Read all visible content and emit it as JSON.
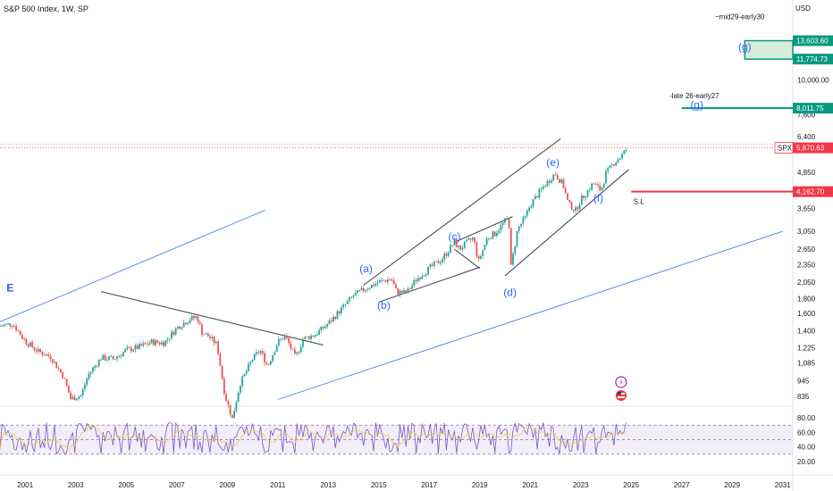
{
  "header": {
    "title": "S&P 500 Index, 1W, SP",
    "currency": "USD"
  },
  "colors": {
    "up": "#26a69a",
    "down": "#ef5350",
    "trend_blue": "#5b8def",
    "line_black": "#363a45",
    "target_teal": "#089981",
    "stop_red": "#f23645",
    "wave_label": "#2962ff",
    "rsi": "#7e57c2"
  },
  "chart_data": [
    {
      "type": "line",
      "title": "S&P 500 Index, 1W, SP",
      "scale": "log",
      "x_ticks": [
        "2001",
        "2003",
        "2005",
        "2007",
        "2009",
        "2011",
        "2013",
        "2015",
        "2017",
        "2019",
        "2021",
        "2023",
        "2025",
        "2027",
        "2029",
        "2031"
      ],
      "y_ticks": [
        835,
        945,
        1085,
        1225,
        1400,
        1600,
        1800,
        2050,
        2350,
        2650,
        3050,
        3650,
        4850,
        6400,
        7600,
        10000
      ],
      "series": [
        {
          "x": [
            2000.0,
            2000.5,
            2001.0,
            2001.5,
            2002.0,
            2002.5,
            2002.8,
            2003.2,
            2003.5,
            2004.0,
            2004.5,
            2005.0,
            2005.5,
            2006.0,
            2006.5,
            2007.0,
            2007.5,
            2007.8,
            2008.0,
            2008.3,
            2008.6,
            2008.9,
            2009.2,
            2009.5,
            2010.0,
            2010.3,
            2010.6,
            2011.0,
            2011.3,
            2011.7,
            2012.0,
            2012.5,
            2013.0,
            2013.5,
            2014.0,
            2014.5,
            2015.0,
            2015.5,
            2015.7,
            2016.1,
            2016.5,
            2017.0,
            2017.5,
            2018.0,
            2018.2,
            2018.5,
            2018.75,
            2018.95,
            2019.3,
            2019.6,
            2020.0,
            2020.15,
            2020.22,
            2020.5,
            2020.8,
            2021.0,
            2021.5,
            2021.98,
            2022.3,
            2022.5,
            2022.79,
            2023.0,
            2023.5,
            2023.8,
            2024.0,
            2024.3,
            2024.6,
            2024.85
          ],
          "y": [
            1450,
            1480,
            1290,
            1190,
            1140,
            980,
            820,
            840,
            990,
            1130,
            1120,
            1200,
            1230,
            1280,
            1270,
            1430,
            1530,
            1560,
            1380,
            1330,
            1250,
            850,
            700,
            920,
            1120,
            1200,
            1060,
            1280,
            1340,
            1130,
            1310,
            1360,
            1480,
            1650,
            1840,
            1950,
            2050,
            2100,
            1900,
            1880,
            2100,
            2280,
            2450,
            2800,
            2650,
            2800,
            2900,
            2400,
            2900,
            3000,
            3300,
            3386,
            2250,
            3100,
            3400,
            3750,
            4300,
            4800,
            4400,
            3800,
            3580,
            3900,
            4450,
            4200,
            4800,
            5200,
            5500,
            5870
          ],
          "labels": {
            "price": {
              "text": "SPX",
              "value": "5,870.63"
            }
          }
        }
      ],
      "rsi": {
        "y_ticks": [
          20,
          40,
          60,
          80
        ],
        "band": [
          30,
          70
        ]
      },
      "annotations": {
        "waves": [
          {
            "label": "(a)",
            "x": 2014.5,
            "y": 2210
          },
          {
            "label": "(b)",
            "x": 2015.2,
            "y": 1660
          },
          {
            "label": "(c)",
            "x": 2018.0,
            "y": 2850
          },
          {
            "label": "(d)",
            "x": 2020.2,
            "y": 1840
          },
          {
            "label": "(e)",
            "x": 2021.9,
            "y": 5080
          },
          {
            "label": "(f)",
            "x": 2023.7,
            "y": 3850
          },
          {
            "label": "(g)",
            "x": 2027.6,
            "y": 8000
          },
          {
            "label": "(g)",
            "x": 2029.5,
            "y": 12600
          },
          {
            "label": "E",
            "x": 2000.4,
            "y": 1900
          }
        ],
        "notes": [
          {
            "text": "-late 26-early27",
            "x": 2027.5,
            "y": 8650
          },
          {
            "text": "~mid29-early30",
            "x": 2029.3,
            "y": 16100
          },
          {
            "text": "S.L",
            "x": 2025.3,
            "y": 3780
          }
        ],
        "price_tags": [
          {
            "value": "13,603.60",
            "color": "#089981",
            "y": 13603.6
          },
          {
            "value": "11,774.73",
            "color": "#089981",
            "y": 11774.73
          },
          {
            "value": "8,011.75",
            "color": "#089981",
            "y": 8011.75
          },
          {
            "value": "4,162.70",
            "color": "#f23645",
            "y": 4162.7
          }
        ],
        "trend_lines": [
          {
            "from": [
              2000.0,
              1500
            ],
            "to": [
              2010.5,
              3600
            ],
            "color": "#5b8def"
          },
          {
            "from": [
              2011.0,
              815
            ],
            "to": [
              2031.0,
              3050
            ],
            "color": "#5b8def"
          },
          {
            "from": [
              2004.0,
              1900
            ],
            "to": [
              2012.8,
              1250
            ],
            "color": "#363a45"
          },
          {
            "from": [
              2014.4,
              2000
            ],
            "to": [
              2022.2,
              6300
            ],
            "color": "#363a45"
          },
          {
            "from": [
              2015.0,
              1750
            ],
            "to": [
              2019.0,
              2300
            ],
            "color": "#363a45"
          },
          {
            "from": [
              2018.0,
              2650
            ],
            "to": [
              2019.0,
              2280
            ],
            "color": "#363a45"
          },
          {
            "from": [
              2018.0,
              2800
            ],
            "to": [
              2020.3,
              3420
            ],
            "color": "#363a45"
          },
          {
            "from": [
              2020.0,
              2150
            ],
            "to": [
              2024.9,
              4950
            ],
            "color": "#363a45"
          }
        ],
        "target_boxes": [
          {
            "x0": 2029.5,
            "x1": 2031.0,
            "y0": 11774.73,
            "y1": 13603.6,
            "color": "#089981"
          }
        ],
        "target_lines": [
          {
            "x0": 2027.0,
            "x1": 2031.0,
            "y": 8011.75,
            "color": "#089981"
          },
          {
            "x0": 2025.0,
            "x1": 2031.0,
            "y": 4162.7,
            "color": "#f23645"
          }
        ]
      }
    }
  ]
}
